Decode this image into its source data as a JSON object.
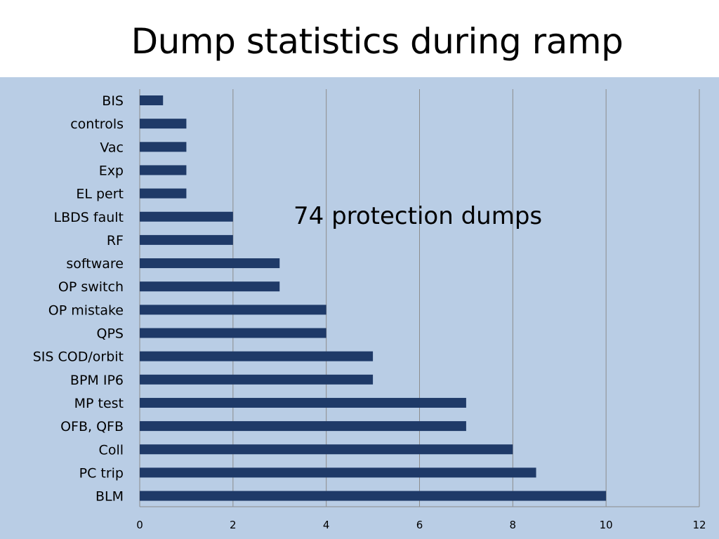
{
  "slide": {
    "title": "Dump statistics during ramp",
    "annotation": "74 protection dumps"
  },
  "colors": {
    "bar": "#1f3a68",
    "panel_background": "#b9cde5",
    "gridline": "#8c8c8c"
  },
  "chart_data": {
    "type": "bar",
    "orientation": "horizontal",
    "title": "",
    "xlabel": "",
    "ylabel": "",
    "categories": [
      "BIS",
      "controls",
      "Vac",
      "Exp",
      "EL pert",
      "LBDS fault",
      "RF",
      "software",
      "OP switch",
      "OP mistake",
      "QPS ",
      "SIS COD/orbit",
      "BPM IP6",
      "MP test",
      "OFB, QFB",
      "Coll",
      "PC trip",
      "BLM"
    ],
    "values": [
      0.5,
      1,
      1,
      1,
      1,
      2,
      2,
      3,
      3,
      4,
      4,
      5,
      5,
      7,
      7,
      8,
      8.5,
      10
    ],
    "xlim": [
      0,
      12
    ],
    "xticks": [
      0,
      2,
      4,
      6,
      8,
      10,
      12
    ],
    "grid": "vertical",
    "legend": "none",
    "annotations": [
      "74 protection dumps"
    ]
  }
}
